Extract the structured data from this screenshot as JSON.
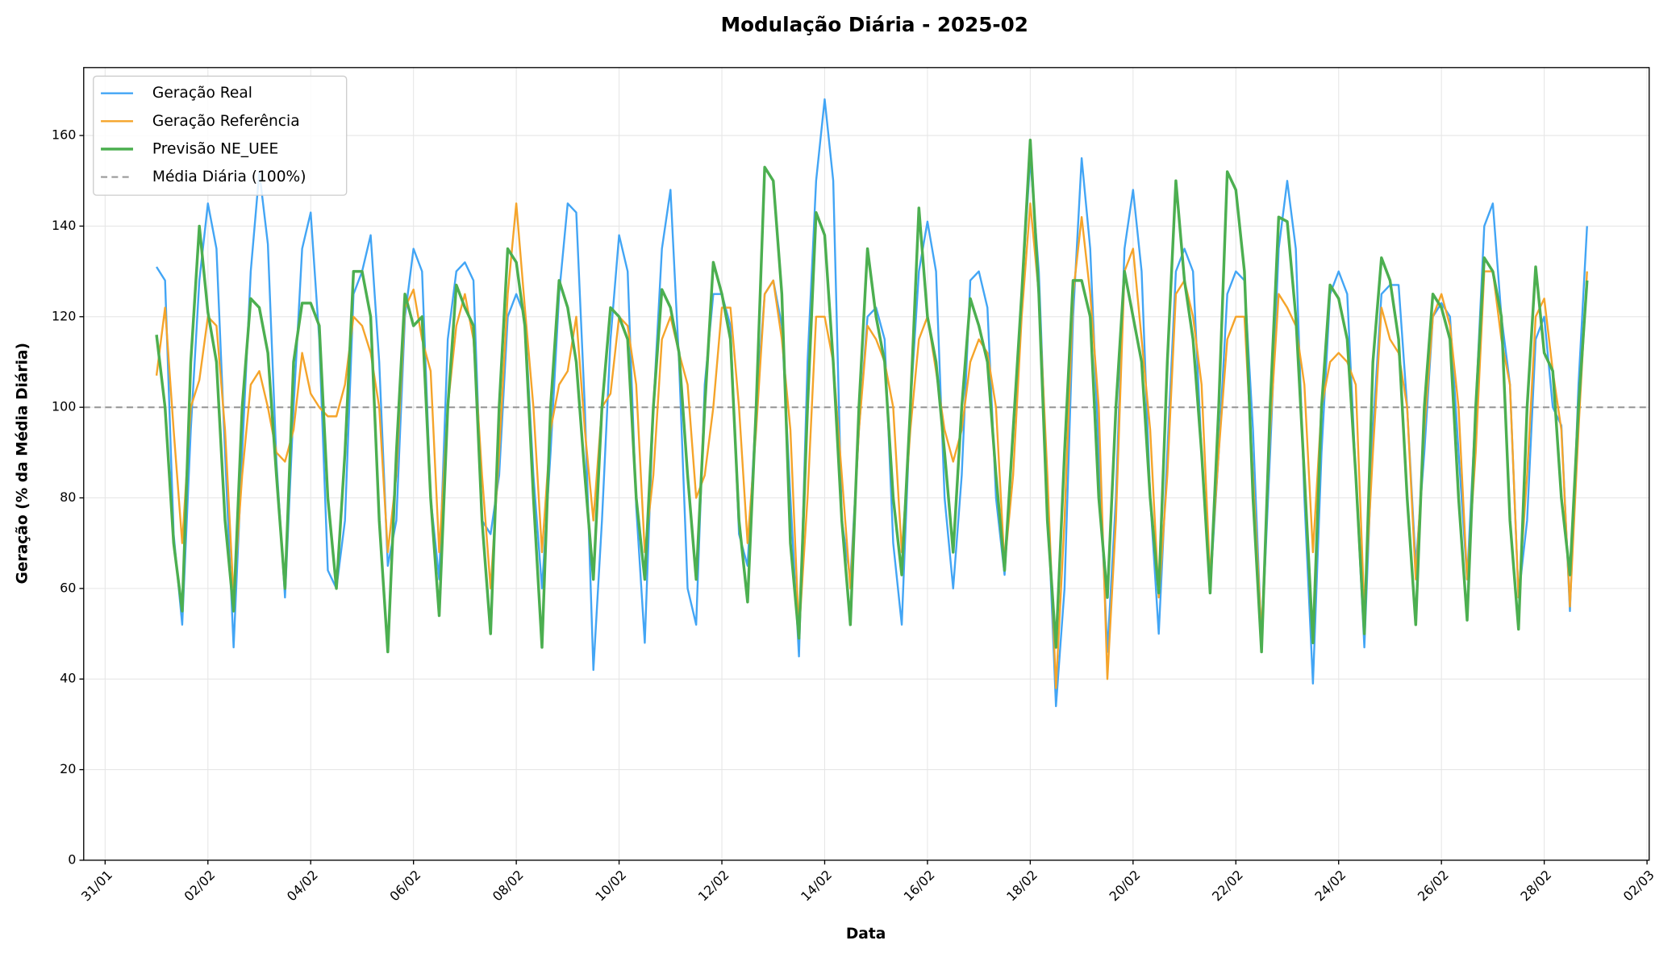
{
  "chart_data": {
    "type": "line",
    "title": "Modulação Diária - 2025-02",
    "xlabel": "Data",
    "ylabel": "Geração (% da Média Diária)",
    "x": [
      "01/02 00:00",
      "01/02 04:00",
      "01/02 08:00",
      "01/02 12:00",
      "01/02 16:00",
      "01/02 20:00",
      "02/02 00:00",
      "02/02 04:00",
      "02/02 08:00",
      "02/02 12:00",
      "02/02 16:00",
      "02/02 20:00",
      "03/02 00:00",
      "03/02 04:00",
      "03/02 08:00",
      "03/02 12:00",
      "03/02 16:00",
      "03/02 20:00",
      "04/02 00:00",
      "04/02 04:00",
      "04/02 08:00",
      "04/02 12:00",
      "04/02 16:00",
      "04/02 20:00",
      "05/02 00:00",
      "05/02 04:00",
      "05/02 08:00",
      "05/02 12:00",
      "05/02 16:00",
      "05/02 20:00",
      "06/02 00:00",
      "06/02 04:00",
      "06/02 08:00",
      "06/02 12:00",
      "06/02 16:00",
      "06/02 20:00",
      "07/02 00:00",
      "07/02 04:00",
      "07/02 08:00",
      "07/02 12:00",
      "07/02 16:00",
      "07/02 20:00",
      "08/02 00:00",
      "08/02 04:00",
      "08/02 08:00",
      "08/02 12:00",
      "08/02 16:00",
      "08/02 20:00",
      "09/02 00:00",
      "09/02 04:00",
      "09/02 08:00",
      "09/02 12:00",
      "09/02 16:00",
      "09/02 20:00",
      "10/02 00:00",
      "10/02 04:00",
      "10/02 08:00",
      "10/02 12:00",
      "10/02 16:00",
      "10/02 20:00",
      "11/02 00:00",
      "11/02 04:00",
      "11/02 08:00",
      "11/02 12:00",
      "11/02 16:00",
      "11/02 20:00",
      "12/02 00:00",
      "12/02 04:00",
      "12/02 08:00",
      "12/02 12:00",
      "12/02 16:00",
      "12/02 20:00",
      "13/02 00:00",
      "13/02 04:00",
      "13/02 08:00",
      "13/02 12:00",
      "13/02 16:00",
      "13/02 20:00",
      "14/02 00:00",
      "14/02 04:00",
      "14/02 08:00",
      "14/02 12:00",
      "14/02 16:00",
      "14/02 20:00",
      "15/02 00:00",
      "15/02 04:00",
      "15/02 08:00",
      "15/02 12:00",
      "15/02 16:00",
      "15/02 20:00",
      "16/02 00:00",
      "16/02 04:00",
      "16/02 08:00",
      "16/02 12:00",
      "16/02 16:00",
      "16/02 20:00",
      "17/02 00:00",
      "17/02 04:00",
      "17/02 08:00",
      "17/02 12:00",
      "17/02 16:00",
      "17/02 20:00",
      "18/02 00:00",
      "18/02 04:00",
      "18/02 08:00",
      "18/02 12:00",
      "18/02 16:00",
      "18/02 20:00",
      "19/02 00:00",
      "19/02 04:00",
      "19/02 08:00",
      "19/02 12:00",
      "19/02 16:00",
      "19/02 20:00",
      "20/02 00:00",
      "20/02 04:00",
      "20/02 08:00",
      "20/02 12:00",
      "20/02 16:00",
      "20/02 20:00",
      "21/02 00:00",
      "21/02 04:00",
      "21/02 08:00",
      "21/02 12:00",
      "21/02 16:00",
      "21/02 20:00",
      "22/02 00:00",
      "22/02 04:00",
      "22/02 08:00",
      "22/02 12:00",
      "22/02 16:00",
      "22/02 20:00",
      "23/02 00:00",
      "23/02 04:00",
      "23/02 08:00",
      "23/02 12:00",
      "23/02 16:00",
      "23/02 20:00",
      "24/02 00:00",
      "24/02 04:00",
      "24/02 08:00",
      "24/02 12:00",
      "24/02 16:00",
      "24/02 20:00",
      "25/02 00:00",
      "25/02 04:00",
      "25/02 08:00",
      "25/02 12:00",
      "25/02 16:00",
      "25/02 20:00",
      "26/02 00:00",
      "26/02 04:00",
      "26/02 08:00",
      "26/02 12:00",
      "26/02 16:00",
      "26/02 20:00",
      "27/02 00:00",
      "27/02 04:00",
      "27/02 08:00",
      "27/02 12:00",
      "27/02 16:00",
      "27/02 20:00",
      "28/02 00:00",
      "28/02 04:00",
      "28/02 08:00",
      "28/02 12:00",
      "28/02 16:00",
      "28/02 20:00"
    ],
    "series": [
      {
        "name": "Geração Real",
        "color": "#42a5f5",
        "width": 1.8,
        "values": [
          131,
          128,
          72,
          52,
          95,
          128,
          145,
          135,
          90,
          47,
          90,
          130,
          152,
          136,
          88,
          58,
          100,
          135,
          143,
          115,
          64,
          60,
          75,
          125,
          130,
          138,
          110,
          65,
          75,
          120,
          135,
          130,
          80,
          62,
          115,
          130,
          132,
          128,
          75,
          72,
          85,
          120,
          125,
          120,
          85,
          60,
          90,
          125,
          145,
          143,
          100,
          42,
          75,
          115,
          138,
          130,
          78,
          48,
          100,
          135,
          148,
          110,
          60,
          52,
          105,
          125,
          125,
          118,
          72,
          65,
          100,
          125,
          128,
          118,
          80,
          45,
          110,
          150,
          168,
          150,
          75,
          62,
          95,
          120,
          122,
          115,
          70,
          52,
          100,
          130,
          141,
          130,
          80,
          60,
          85,
          128,
          130,
          122,
          80,
          63,
          95,
          125,
          155,
          130,
          80,
          34,
          60,
          120,
          155,
          135,
          90,
          46,
          80,
          135,
          148,
          130,
          80,
          50,
          90,
          130,
          135,
          130,
          90,
          60,
          90,
          125,
          130,
          128,
          95,
          48,
          90,
          135,
          150,
          135,
          80,
          39,
          90,
          125,
          130,
          125,
          85,
          47,
          95,
          125,
          127,
          127,
          100,
          65,
          90,
          120,
          123,
          120,
          90,
          62,
          100,
          140,
          145,
          120,
          105,
          58,
          75,
          115,
          120,
          100,
          96,
          55,
          105,
          140
        ]
      },
      {
        "name": "Geração Referência",
        "color": "#f5a42a",
        "width": 1.8,
        "values": [
          107,
          122,
          95,
          70,
          100,
          106,
          120,
          118,
          95,
          58,
          85,
          105,
          108,
          100,
          90,
          88,
          95,
          112,
          103,
          100,
          98,
          98,
          105,
          120,
          118,
          112,
          100,
          68,
          85,
          122,
          126,
          115,
          108,
          68,
          100,
          118,
          125,
          115,
          85,
          60,
          90,
          125,
          145,
          122,
          100,
          68,
          95,
          105,
          108,
          120,
          95,
          75,
          100,
          103,
          120,
          118,
          105,
          68,
          85,
          115,
          120,
          112,
          105,
          80,
          85,
          100,
          122,
          122,
          100,
          70,
          95,
          125,
          128,
          115,
          95,
          50,
          80,
          120,
          120,
          110,
          85,
          60,
          95,
          118,
          115,
          110,
          100,
          68,
          95,
          115,
          120,
          108,
          95,
          88,
          95,
          110,
          115,
          112,
          100,
          65,
          85,
          120,
          145,
          125,
          85,
          38,
          75,
          125,
          142,
          125,
          100,
          40,
          75,
          130,
          135,
          115,
          95,
          58,
          85,
          125,
          128,
          120,
          105,
          62,
          90,
          115,
          120,
          120,
          85,
          50,
          95,
          125,
          122,
          118,
          105,
          68,
          100,
          110,
          112,
          110,
          105,
          55,
          90,
          122,
          115,
          112,
          100,
          62,
          95,
          120,
          125,
          118,
          100,
          62,
          90,
          130,
          130,
          115,
          105,
          58,
          85,
          120,
          124,
          108,
          95,
          56,
          95,
          130
        ]
      },
      {
        "name": "Previsão NE_UEE",
        "color": "#4caf50",
        "width": 2.6,
        "values": [
          116,
          100,
          70,
          55,
          110,
          140,
          121,
          110,
          75,
          55,
          100,
          124,
          122,
          112,
          85,
          60,
          110,
          123,
          123,
          118,
          80,
          60,
          90,
          130,
          130,
          120,
          75,
          46,
          90,
          125,
          118,
          120,
          80,
          54,
          100,
          127,
          122,
          118,
          75,
          50,
          100,
          135,
          132,
          118,
          80,
          47,
          100,
          128,
          122,
          110,
          85,
          62,
          100,
          122,
          120,
          115,
          80,
          62,
          100,
          126,
          122,
          112,
          85,
          62,
          100,
          132,
          125,
          115,
          75,
          57,
          100,
          153,
          150,
          125,
          70,
          49,
          100,
          143,
          138,
          110,
          75,
          52,
          100,
          135,
          120,
          110,
          80,
          63,
          100,
          144,
          120,
          110,
          90,
          68,
          100,
          124,
          118,
          110,
          85,
          64,
          95,
          125,
          159,
          125,
          75,
          47,
          90,
          128,
          128,
          120,
          80,
          58,
          100,
          130,
          120,
          110,
          80,
          59,
          110,
          150,
          128,
          115,
          90,
          59,
          100,
          152,
          148,
          130,
          80,
          46,
          100,
          142,
          141,
          120,
          85,
          48,
          100,
          127,
          124,
          115,
          85,
          50,
          110,
          133,
          128,
          115,
          80,
          52,
          100,
          125,
          122,
          115,
          80,
          53,
          100,
          133,
          130,
          120,
          75,
          51,
          100,
          131,
          112,
          108,
          80,
          63,
          100,
          128
        ]
      }
    ],
    "reference_line": {
      "name": "Média Diária (100%)",
      "value": 100,
      "color": "#999999"
    },
    "xlim": [
      "30/01 14:00",
      "02/03 01:00"
    ],
    "xticks": [
      {
        "value": "31/01 00:00",
        "label": "31/01"
      },
      {
        "value": "02/02 00:00",
        "label": "02/02"
      },
      {
        "value": "04/02 00:00",
        "label": "04/02"
      },
      {
        "value": "06/02 00:00",
        "label": "06/02"
      },
      {
        "value": "08/02 00:00",
        "label": "08/02"
      },
      {
        "value": "10/02 00:00",
        "label": "10/02"
      },
      {
        "value": "12/02 00:00",
        "label": "12/02"
      },
      {
        "value": "14/02 00:00",
        "label": "14/02"
      },
      {
        "value": "16/02 00:00",
        "label": "16/02"
      },
      {
        "value": "18/02 00:00",
        "label": "18/02"
      },
      {
        "value": "20/02 00:00",
        "label": "20/02"
      },
      {
        "value": "22/02 00:00",
        "label": "22/02"
      },
      {
        "value": "24/02 00:00",
        "label": "24/02"
      },
      {
        "value": "26/02 00:00",
        "label": "26/02"
      },
      {
        "value": "28/02 00:00",
        "label": "28/02"
      },
      {
        "value": "02/03 00:00",
        "label": "02/03"
      }
    ],
    "ylim": [
      0,
      175
    ],
    "yticks": [
      0,
      20,
      40,
      60,
      80,
      100,
      120,
      140,
      160
    ],
    "grid": true,
    "legend": "upper left"
  }
}
